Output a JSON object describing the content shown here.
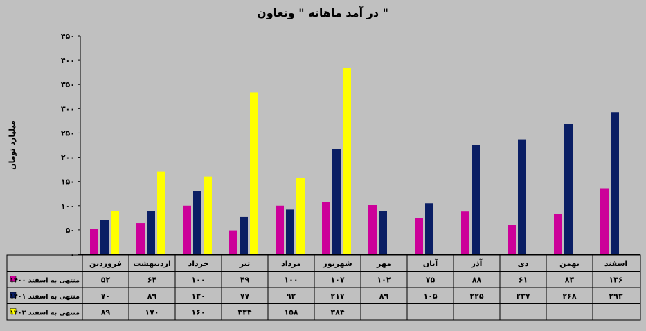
{
  "chart_data": {
    "type": "bar",
    "title": "در آمد ماهانه \" وتعاون \"",
    "ylabel": "میلیارد تومان",
    "ylim": [
      0,
      450
    ],
    "yticks": [
      "۰",
      "۵۰",
      "۱۰۰",
      "۱۵۰",
      "۲۰۰",
      "۲۵۰",
      "۳۰۰",
      "۳۵۰",
      "۴۰۰",
      "۴۵۰"
    ],
    "ytick_values": [
      0,
      50,
      100,
      150,
      200,
      250,
      300,
      350,
      400,
      450
    ],
    "grid": false,
    "legend": "data-table-left",
    "categories": [
      "فروردین",
      "اردیبهشت",
      "خرداد",
      "تیر",
      "مرداد",
      "شهریور",
      "مهر",
      "آبان",
      "آذر",
      "دی",
      "بهمن",
      "اسفند"
    ],
    "series": [
      {
        "name": "منتهی به اسفند ۱۴۰۰",
        "color": "#cc0099",
        "values": [
          52,
          64,
          100,
          49,
          100,
          107,
          102,
          75,
          88,
          61,
          83,
          136
        ],
        "labels": [
          "۵۲",
          "۶۴",
          "۱۰۰",
          "۴۹",
          "۱۰۰",
          "۱۰۷",
          "۱۰۲",
          "۷۵",
          "۸۸",
          "۶۱",
          "۸۳",
          "۱۳۶"
        ]
      },
      {
        "name": "منتهی به اسفند ۱۴۰۱",
        "color": "#0a1e64",
        "values": [
          70,
          89,
          130,
          77,
          92,
          217,
          89,
          105,
          225,
          237,
          268,
          293
        ],
        "labels": [
          "۷۰",
          "۸۹",
          "۱۳۰",
          "۷۷",
          "۹۲",
          "۲۱۷",
          "۸۹",
          "۱۰۵",
          "۲۲۵",
          "۲۳۷",
          "۲۶۸",
          "۲۹۳"
        ]
      },
      {
        "name": "منتهی به اسفند ۱۴۰۲",
        "color": "#ffff00",
        "values": [
          89,
          170,
          160,
          334,
          158,
          384,
          null,
          null,
          null,
          null,
          null,
          null
        ],
        "labels": [
          "۸۹",
          "۱۷۰",
          "۱۶۰",
          "۳۳۴",
          "۱۵۸",
          "۳۸۴",
          "",
          "",
          "",
          "",
          "",
          ""
        ]
      }
    ]
  }
}
